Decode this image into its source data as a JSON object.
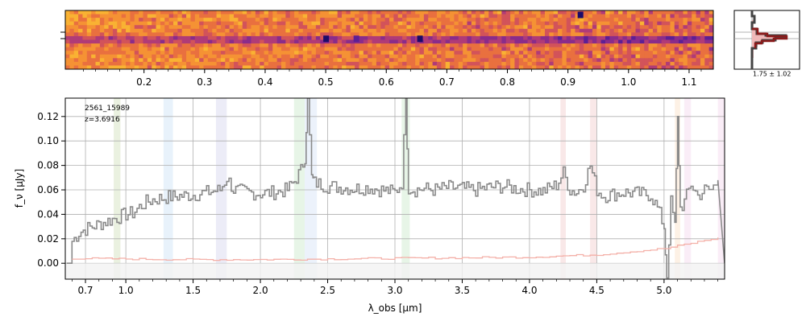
{
  "chart_data": [
    {
      "type": "heatmap",
      "description": "2D spectrum (cutout)",
      "top_axis_ticks": [
        "0.2",
        "0.3",
        "0.4",
        "0.5",
        "0.6",
        "0.7",
        "0.8",
        "0.9",
        "1.0",
        "1.1"
      ],
      "top_axis_tick_values": [
        0.2,
        0.3,
        0.4,
        0.5,
        0.6,
        0.7,
        0.8,
        0.9,
        1.0,
        1.1
      ],
      "colormap": "plasma"
    },
    {
      "type": "line",
      "description": "1D extracted spectrum",
      "object_id": "2561_15989",
      "redshift_label": "z=3.6916",
      "xlabel": "λ_obs [μm]",
      "ylabel": "f_ν [μJy]",
      "xlim": [
        0.55,
        5.45
      ],
      "ylim": [
        -0.013,
        0.135
      ],
      "x_ticks": [
        "0.7",
        "1.0",
        "1.5",
        "2.0",
        "2.5",
        "3.0",
        "3.5",
        "4.0",
        "4.5",
        "5.0"
      ],
      "x_tick_values": [
        0.7,
        1.0,
        1.5,
        2.0,
        2.5,
        3.0,
        3.5,
        4.0,
        4.5,
        5.0
      ],
      "y_ticks": [
        "0.00",
        "0.02",
        "0.04",
        "0.06",
        "0.08",
        "0.10",
        "0.12"
      ],
      "y_tick_values": [
        0.0,
        0.02,
        0.04,
        0.06,
        0.08,
        0.1,
        0.12
      ],
      "grid": true,
      "series": [
        {
          "color": "#8a8a8a",
          "x": [
            0.6,
            0.65,
            0.7,
            0.75,
            0.8,
            0.85,
            0.9,
            0.95,
            1.0,
            1.05,
            1.1,
            1.15,
            1.2,
            1.3,
            1.4,
            1.5,
            1.6,
            1.7,
            1.75,
            1.8,
            1.9,
            2.0,
            2.1,
            2.2,
            2.25,
            2.3,
            2.33,
            2.35,
            2.38,
            2.4,
            2.5,
            2.6,
            2.7,
            2.8,
            2.9,
            3.0,
            3.05,
            3.08,
            3.1,
            3.15,
            3.2,
            3.3,
            3.4,
            3.5,
            3.6,
            3.7,
            3.8,
            3.9,
            4.0,
            4.1,
            4.2,
            4.25,
            4.3,
            4.35,
            4.4,
            4.45,
            4.5,
            4.55,
            4.6,
            4.7,
            4.8,
            4.9,
            4.95,
            5.0,
            5.02,
            5.05,
            5.08,
            5.1,
            5.12,
            5.15,
            5.2,
            5.25,
            5.3,
            5.35,
            5.4
          ],
          "y": [
            0.018,
            0.025,
            0.028,
            0.03,
            0.032,
            0.034,
            0.036,
            0.038,
            0.04,
            0.041,
            0.046,
            0.05,
            0.052,
            0.054,
            0.055,
            0.056,
            0.058,
            0.06,
            0.07,
            0.06,
            0.058,
            0.057,
            0.058,
            0.06,
            0.067,
            0.076,
            0.087,
            0.135,
            0.07,
            0.066,
            0.063,
            0.062,
            0.061,
            0.062,
            0.06,
            0.058,
            0.066,
            0.135,
            0.062,
            0.06,
            0.061,
            0.06,
            0.062,
            0.061,
            0.06,
            0.062,
            0.063,
            0.061,
            0.06,
            0.059,
            0.064,
            0.074,
            0.06,
            0.058,
            0.064,
            0.08,
            0.06,
            0.055,
            0.056,
            0.058,
            0.057,
            0.056,
            0.045,
            0.03,
            -0.012,
            0.05,
            0.03,
            0.12,
            0.045,
            0.05,
            0.065,
            0.055,
            0.06,
            0.06,
            0.068
          ]
        },
        {
          "color": "#f4b0a8",
          "x": [
            0.6,
            1.0,
            1.5,
            2.0,
            2.5,
            3.0,
            3.5,
            4.0,
            4.5,
            5.0,
            5.4
          ],
          "y": [
            0.004,
            0.0035,
            0.003,
            0.003,
            0.0035,
            0.004,
            0.0045,
            0.005,
            0.007,
            0.012,
            0.021
          ]
        }
      ],
      "shaded_bands": [
        {
          "x0": 0.91,
          "x1": 0.96,
          "color": "#d9e6c6"
        },
        {
          "x0": 1.28,
          "x1": 1.35,
          "color": "#d6e8f8"
        },
        {
          "x0": 1.67,
          "x1": 1.75,
          "color": "#dcdcf0"
        },
        {
          "x0": 2.25,
          "x1": 2.33,
          "color": "#d3ecd3"
        },
        {
          "x0": 2.33,
          "x1": 2.42,
          "color": "#dde8f8"
        },
        {
          "x0": 3.05,
          "x1": 3.11,
          "color": "#d3ecd3"
        },
        {
          "x0": 4.23,
          "x1": 4.27,
          "color": "#f4d6d6"
        },
        {
          "x0": 4.45,
          "x1": 4.5,
          "color": "#f4d6d6"
        },
        {
          "x0": 5.08,
          "x1": 5.12,
          "color": "#fbe6d0"
        },
        {
          "x0": 5.15,
          "x1": 5.2,
          "color": "#f6dff0"
        },
        {
          "x0": 5.4,
          "x1": 5.45,
          "color": "#f6dff0"
        }
      ]
    },
    {
      "type": "line",
      "description": "spatial profile inset",
      "annotation": "1.75 ± 1.02"
    }
  ]
}
